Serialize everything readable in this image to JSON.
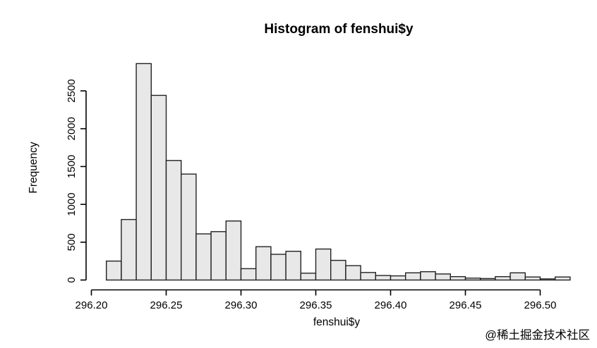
{
  "page": {
    "background_color": "#ffffff"
  },
  "watermark": {
    "text": "@稀土掘金技术社区",
    "color": "#c9c9c9"
  },
  "chart_data": {
    "type": "bar",
    "subtype": "histogram",
    "title": "Histogram of fenshui$y",
    "xlabel": "fenshui$y",
    "ylabel": "Frequency",
    "grid": false,
    "legend": null,
    "xlim": [
      296.2,
      296.52
    ],
    "ylim": [
      0,
      2860
    ],
    "bin_width": 0.01,
    "bin_edges": [
      296.21,
      296.22,
      296.23,
      296.24,
      296.25,
      296.26,
      296.27,
      296.28,
      296.29,
      296.3,
      296.31,
      296.32,
      296.33,
      296.34,
      296.35,
      296.36,
      296.37,
      296.38,
      296.39,
      296.4,
      296.41,
      296.42,
      296.43,
      296.44,
      296.45,
      296.46,
      296.47,
      296.48,
      296.49,
      296.5,
      296.51,
      296.52
    ],
    "values": [
      250,
      800,
      2860,
      2440,
      1580,
      1400,
      610,
      640,
      780,
      150,
      440,
      340,
      380,
      90,
      410,
      260,
      190,
      100,
      60,
      55,
      95,
      110,
      80,
      45,
      25,
      20,
      45,
      95,
      40,
      15,
      40
    ],
    "x_ticks": [
      296.2,
      296.25,
      296.3,
      296.35,
      296.4,
      296.45,
      296.5
    ],
    "x_tick_labels": [
      "296.20",
      "296.25",
      "296.30",
      "296.35",
      "296.40",
      "296.45",
      "296.50"
    ],
    "y_ticks": [
      0,
      500,
      1000,
      1500,
      2000,
      2500
    ],
    "y_tick_labels": [
      "0",
      "500",
      "1000",
      "1500",
      "2000",
      "2500"
    ],
    "bar_fill": "#e8e8e8",
    "bar_stroke": "#222222",
    "axis_color": "#000000",
    "title_color": "#000000"
  }
}
